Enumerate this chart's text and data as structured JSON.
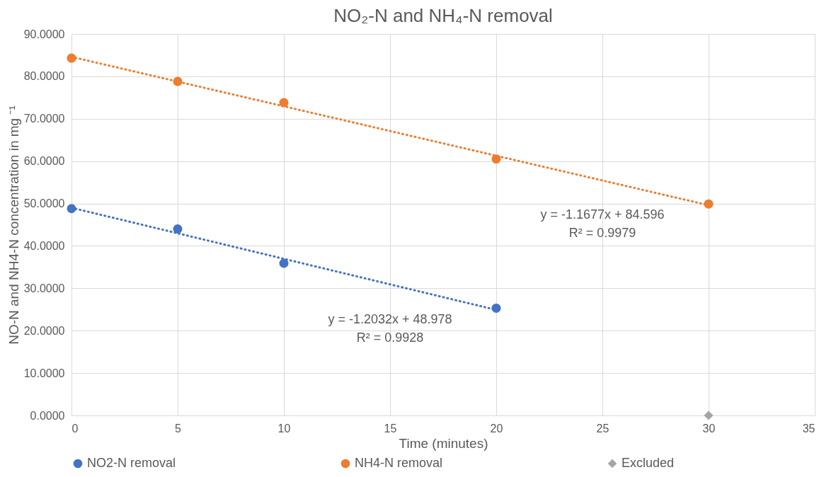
{
  "chart_data": {
    "type": "scatter",
    "title": "NO₂-N and NH₄-N removal",
    "xlabel": "Time (minutes)",
    "ylabel": "NO-N and NH4-N concentration in mg ⁻¹",
    "xlim": [
      0,
      35
    ],
    "xticks": [
      0,
      5,
      10,
      15,
      20,
      25,
      30,
      35
    ],
    "ylim": [
      0,
      90
    ],
    "yticks": [
      {
        "value": 0,
        "label": "0.0000"
      },
      {
        "value": 10,
        "label": "10.0000"
      },
      {
        "value": 20,
        "label": "20.0000"
      },
      {
        "value": 30,
        "label": "30.0000"
      },
      {
        "value": 40,
        "label": "40.0000"
      },
      {
        "value": 50,
        "label": "50.0000"
      },
      {
        "value": 60,
        "label": "60.0000"
      },
      {
        "value": 70,
        "label": "70.0000"
      },
      {
        "value": 80,
        "label": "80.0000"
      },
      {
        "value": 90,
        "label": "90.0000"
      }
    ],
    "grid": true,
    "legend": "bottom",
    "series": [
      {
        "type": "line",
        "color": "#4472c4",
        "line_style": "dotted",
        "x": [
          0,
          20
        ],
        "values": [
          49.0,
          24.9
        ]
      },
      {
        "type": "line",
        "color": "#ed7d31",
        "line_style": "dotted",
        "x": [
          0,
          30
        ],
        "values": [
          84.6,
          49.6
        ]
      },
      {
        "name": "NO2-N removal",
        "color": "#4472c4",
        "marker": "circle",
        "x": [
          0,
          5,
          10,
          20
        ],
        "values": [
          48.8,
          44.0,
          35.9,
          25.3
        ]
      },
      {
        "name": "NH4-N removal",
        "color": "#ed7d31",
        "marker": "circle",
        "x": [
          0,
          5,
          10,
          20,
          30
        ],
        "values": [
          84.3,
          78.8,
          73.8,
          60.5,
          49.9
        ]
      },
      {
        "name": "Excluded",
        "color": "#a5a5a5",
        "marker": "diamond",
        "x": [
          30
        ],
        "values": [
          0
        ]
      }
    ],
    "annotations": [
      "y = -1.2032x + 48.978",
      "R² = 0.9928",
      "y = -1.1677x + 84.596",
      "R² = 0.9979"
    ]
  }
}
